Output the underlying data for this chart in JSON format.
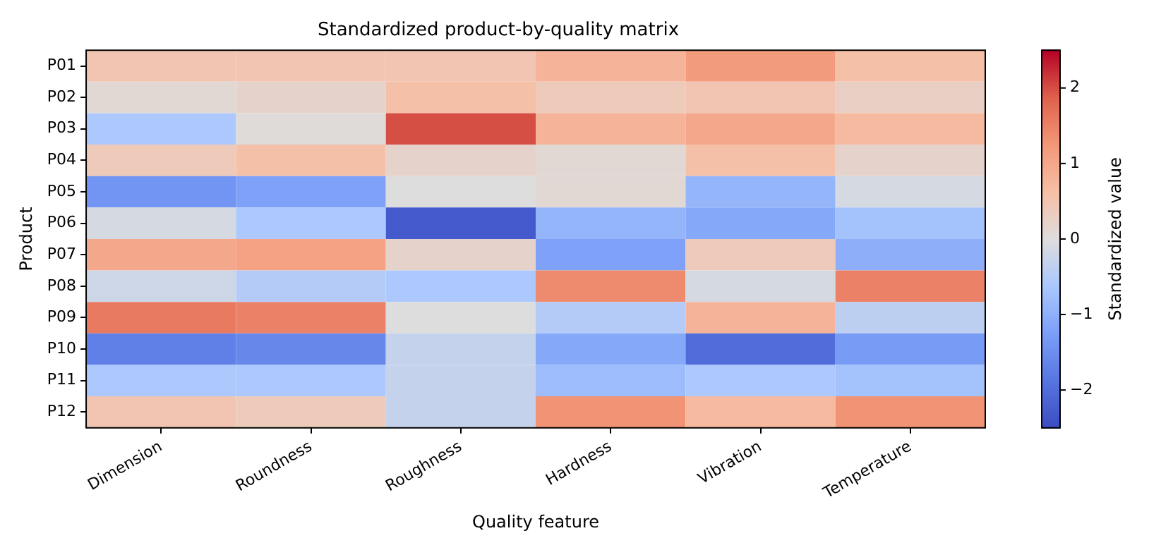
{
  "chart_data": {
    "type": "heatmap",
    "title": "Standardized product-by-quality matrix",
    "xlabel": "Quality feature",
    "ylabel": "Product",
    "clabel": "Standardized value",
    "categories": [
      "Dimension",
      "Roundness",
      "Roughness",
      "Hardness",
      "Vibration",
      "Temperature"
    ],
    "y_categories": [
      "P01",
      "P02",
      "P03",
      "P04",
      "P05",
      "P06",
      "P07",
      "P08",
      "P09",
      "P10",
      "P11",
      "P12"
    ],
    "cells": [
      [
        0.5,
        0.5,
        0.5,
        0.8,
        1.2,
        0.6
      ],
      [
        0.1,
        0.2,
        0.6,
        0.4,
        0.5,
        0.3
      ],
      [
        -0.6,
        0.05,
        2.0,
        0.8,
        1.0,
        0.7
      ],
      [
        0.4,
        0.6,
        0.2,
        0.1,
        0.6,
        0.2
      ],
      [
        -1.4,
        -1.2,
        0.0,
        0.1,
        -0.9,
        -0.1
      ],
      [
        -0.1,
        -0.6,
        -2.3,
        -0.9,
        -1.1,
        -0.7
      ],
      [
        1.0,
        1.1,
        0.2,
        -1.2,
        0.4,
        -1.0
      ],
      [
        -0.2,
        -0.5,
        -0.6,
        1.4,
        -0.1,
        1.5
      ],
      [
        1.6,
        1.5,
        0.0,
        -0.5,
        0.8,
        -0.4
      ],
      [
        -1.7,
        -1.6,
        -0.3,
        -1.1,
        -2.0,
        -1.3
      ],
      [
        -0.6,
        -0.6,
        -0.3,
        -0.8,
        -0.6,
        -0.7
      ],
      [
        0.5,
        0.4,
        -0.3,
        1.3,
        0.7,
        1.3
      ]
    ],
    "clim": [
      -2.5,
      2.5
    ],
    "cticks": [
      -2,
      -1,
      0,
      1,
      2
    ]
  }
}
